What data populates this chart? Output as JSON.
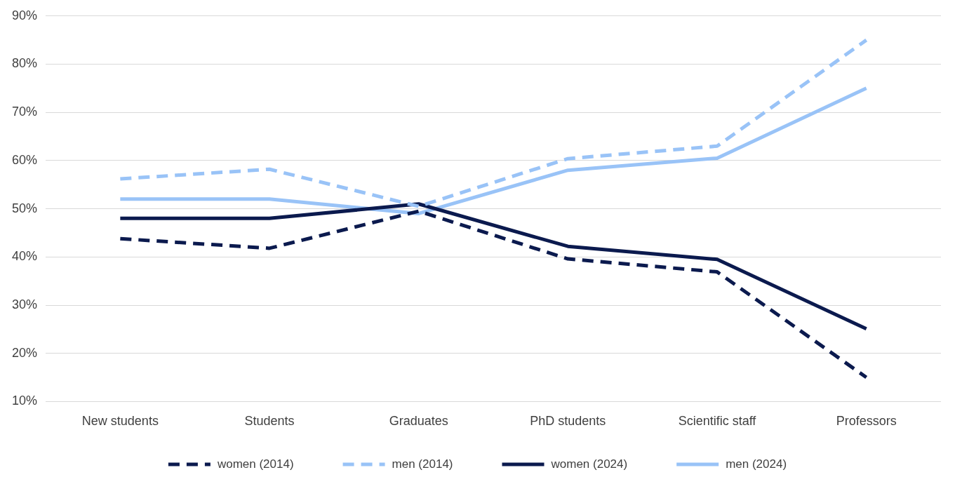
{
  "chart_data": {
    "type": "line",
    "categories": [
      "New students",
      "Students",
      "Graduates",
      "PhD students",
      "Scientific staff",
      "Professors"
    ],
    "series": [
      {
        "name": "women (2014)",
        "color": "#0b1a4e",
        "line_style": "dashed",
        "values": [
          43.8,
          41.8,
          49.5,
          39.6,
          36.9,
          15
        ]
      },
      {
        "name": "men (2014)",
        "color": "#99c3f7",
        "line_style": "dashed",
        "values": [
          56.2,
          58.2,
          50.5,
          60.4,
          63,
          85
        ]
      },
      {
        "name": "women (2024)",
        "color": "#0b1a4e",
        "line_style": "solid",
        "values": [
          48,
          48,
          51,
          42.2,
          39.5,
          25.1
        ]
      },
      {
        "name": "men (2024)",
        "color": "#99c3f7",
        "line_style": "solid",
        "values": [
          52,
          52,
          49,
          58,
          60.5,
          75
        ]
      }
    ],
    "ylim": [
      10,
      90
    ],
    "yticks": [
      {
        "value": 10,
        "label": "10%"
      },
      {
        "value": 20,
        "label": "20%"
      },
      {
        "value": 30,
        "label": "30%"
      },
      {
        "value": 40,
        "label": "40%"
      },
      {
        "value": 50,
        "label": "50%"
      },
      {
        "value": 60,
        "label": "60%"
      },
      {
        "value": 70,
        "label": "70%"
      },
      {
        "value": 80,
        "label": "80%"
      },
      {
        "value": 90,
        "label": "90%"
      }
    ],
    "grid": "y",
    "legend": "bottom",
    "marker": "none"
  }
}
